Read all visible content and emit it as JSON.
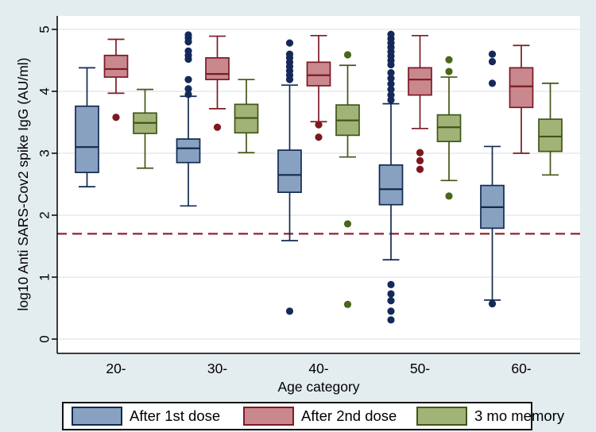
{
  "chart_data": {
    "type": "box",
    "title": "",
    "xlabel": "Age category",
    "ylabel": "log10 Anti SARS-Cov2 spike IgG (AU/ml)",
    "categories": [
      "20-",
      "30-",
      "40-",
      "50-",
      "60-"
    ],
    "yticks": [
      0,
      1,
      2,
      3,
      4,
      5
    ],
    "ylim": [
      -0.23,
      5.22
    ],
    "grid": true,
    "legend_position": "bottom",
    "reference_line": {
      "value": 1.7,
      "style": "dashed",
      "color": "#93222c"
    },
    "colors": {
      "background": "#e3ecef",
      "plot_background": "#ffffff",
      "gridline": "#e5eaec",
      "axis": "#000000"
    },
    "series": [
      {
        "name": "After 1st dose",
        "fill": "#89a1c0",
        "stroke": "#122a52",
        "outlier_fill": "#14295a",
        "boxes": [
          {
            "category": "20-",
            "low": 2.46,
            "q1": 2.69,
            "median": 3.1,
            "q3": 3.76,
            "high": 4.38,
            "outliers": []
          },
          {
            "category": "30-",
            "low": 2.15,
            "q1": 2.85,
            "median": 3.08,
            "q3": 3.23,
            "high": 3.92,
            "outliers": [
              3.95,
              4.04,
              4.19,
              4.52,
              4.58,
              4.65,
              4.8,
              4.86,
              4.91
            ]
          },
          {
            "category": "40-",
            "low": 1.59,
            "q1": 2.37,
            "median": 2.65,
            "q3": 3.05,
            "high": 4.1,
            "outliers": [
              0.45,
              4.19,
              4.26,
              4.33,
              4.4,
              4.47,
              4.54,
              4.6,
              4.78
            ]
          },
          {
            "category": "50-",
            "low": 1.28,
            "q1": 2.17,
            "median": 2.42,
            "q3": 2.81,
            "high": 3.8,
            "outliers": [
              0.31,
              0.45,
              0.62,
              0.73,
              0.88,
              3.86,
              3.94,
              4.03,
              4.12,
              4.21,
              4.3,
              4.43,
              4.5,
              4.57,
              4.64,
              4.71,
              4.78,
              4.85,
              4.92
            ]
          },
          {
            "category": "60-",
            "low": 0.63,
            "q1": 1.79,
            "median": 2.13,
            "q3": 2.48,
            "high": 3.11,
            "outliers": [
              0.57,
              4.13,
              4.48,
              4.6
            ]
          }
        ]
      },
      {
        "name": "After 2nd dose",
        "fill": "#c9888e",
        "stroke": "#7c1a22",
        "outlier_fill": "#7d191e",
        "boxes": [
          {
            "category": "20-",
            "low": 3.97,
            "q1": 4.23,
            "median": 4.36,
            "q3": 4.58,
            "high": 4.84,
            "outliers": [
              3.58
            ]
          },
          {
            "category": "30-",
            "low": 3.72,
            "q1": 4.19,
            "median": 4.28,
            "q3": 4.54,
            "high": 4.89,
            "outliers": [
              3.42
            ]
          },
          {
            "category": "40-",
            "low": 3.51,
            "q1": 4.09,
            "median": 4.26,
            "q3": 4.47,
            "high": 4.9,
            "outliers": [
              3.26,
              3.46
            ]
          },
          {
            "category": "50-",
            "low": 3.4,
            "q1": 3.94,
            "median": 4.19,
            "q3": 4.38,
            "high": 4.9,
            "outliers": [
              2.74,
              2.88,
              3.01
            ]
          },
          {
            "category": "60-",
            "low": 3.0,
            "q1": 3.74,
            "median": 4.08,
            "q3": 4.38,
            "high": 4.74,
            "outliers": []
          }
        ]
      },
      {
        "name": "3 mo memory",
        "fill": "#a2b377",
        "stroke": "#415617",
        "outlier_fill": "#49661b",
        "boxes": [
          {
            "category": "20-",
            "low": 2.76,
            "q1": 3.32,
            "median": 3.49,
            "q3": 3.65,
            "high": 4.03,
            "outliers": []
          },
          {
            "category": "30-",
            "low": 3.01,
            "q1": 3.33,
            "median": 3.57,
            "q3": 3.79,
            "high": 4.19,
            "outliers": []
          },
          {
            "category": "40-",
            "low": 2.94,
            "q1": 3.29,
            "median": 3.53,
            "q3": 3.78,
            "high": 4.42,
            "outliers": [
              0.56,
              1.86,
              4.59
            ]
          },
          {
            "category": "50-",
            "low": 2.56,
            "q1": 3.19,
            "median": 3.42,
            "q3": 3.62,
            "high": 4.23,
            "outliers": [
              2.31,
              4.32,
              4.51
            ]
          },
          {
            "category": "60-",
            "low": 2.65,
            "q1": 3.03,
            "median": 3.27,
            "q3": 3.55,
            "high": 4.13,
            "outliers": []
          }
        ]
      }
    ]
  }
}
